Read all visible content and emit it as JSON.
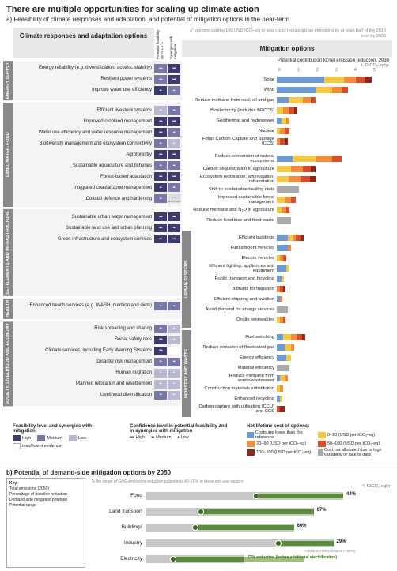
{
  "title": "There are multiple opportunities for scaling up climate action",
  "subtitle_a": "a) Feasibility of climate responses and adaptation, and potential of mitigation options in the near-term",
  "left_header": "Climate responses and adaptation options",
  "right_header": "Mitigation options",
  "right_note": "options costing 100 USD tCO₂-eq or less could reduce global emissions by at least half of the 2019 level by 2030",
  "right_axis_label": "Potential contribution to net emission reduction, 2030",
  "right_axis_unit": "GtCO₂-eq/yr",
  "axis_ticks": [
    "0",
    "1",
    "2",
    "3",
    "4",
    "5"
  ],
  "matrix_headers": [
    "Potential feasibility up to 1.5°C",
    "Synergies with mitigation"
  ],
  "colors": {
    "cost_neg": "#6b9bd1",
    "cost_0_20": "#f4c842",
    "cost_20_50": "#f08c3a",
    "cost_50_100": "#d94e2a",
    "cost_100_200": "#8b2a1a",
    "cost_na": "#aaaaaa",
    "high": "#3b3b6d",
    "med": "#7878a8",
    "low": "#b8b8d0",
    "demand_bg": "#c8c8c8",
    "demand_fg": "#5a8c3a",
    "demand_dot": "#3a6b1a"
  },
  "sectors_adapt": [
    {
      "name": "ENERGY SUPPLY",
      "rows": [
        {
          "label": "Energy reliability (e.g. diversification, access, stability)",
          "cells": [
            "med:3",
            "high:3"
          ]
        },
        {
          "label": "Resilient power systems",
          "cells": [
            "med:3",
            "high:3"
          ]
        },
        {
          "label": "Improve water use efficiency",
          "cells": [
            "high:2",
            "med:2"
          ]
        }
      ]
    },
    {
      "name": "LAND, WATER, FOOD",
      "rows": [
        {
          "label": "Efficient livestock systems",
          "cells": [
            "low:2",
            "med:2"
          ]
        },
        {
          "label": "Improved cropland management",
          "cells": [
            "high:3",
            "high:3"
          ]
        },
        {
          "label": "Water use efficiency and water resource management",
          "cells": [
            "high:3",
            "med:2"
          ]
        },
        {
          "label": "Biodiversity management and ecosystem connectivity",
          "cells": [
            "med:2",
            "low:2"
          ]
        },
        {
          "label": "Agroforestry",
          "cells": [
            "high:3",
            "high:3"
          ]
        },
        {
          "label": "Sustainable aquaculture and fisheries",
          "cells": [
            "med:2",
            "med:2"
          ]
        },
        {
          "label": "Forest-based adaptation",
          "cells": [
            "high:3",
            "high:3"
          ]
        },
        {
          "label": "Integrated coastal zone management",
          "cells": [
            "high:2",
            "med:2"
          ]
        },
        {
          "label": "Coastal defence and hardening",
          "cells": [
            "med:2",
            "na"
          ]
        }
      ]
    },
    {
      "name": "SETTLEMENTS AND INFRASTRUCTURE",
      "rows": [
        {
          "label": "Sustainable urban water management",
          "cells": [
            "high:3",
            "high:3"
          ]
        },
        {
          "label": "Sustainable land use and urban planning",
          "cells": [
            "high:3",
            "high:2"
          ]
        },
        {
          "label": "Green infrastructure and ecosystem services",
          "cells": [
            "high:3",
            "high:3"
          ]
        }
      ]
    },
    {
      "name": "HEALTH",
      "rows": [
        {
          "label": "Enhanced health services (e.g. WASH, nutrition and diets)",
          "cells": [
            "med:3",
            "med:2"
          ]
        }
      ]
    },
    {
      "name": "SOCIETY, LIVELIHOOD AND ECONOMY",
      "rows": [
        {
          "label": "Risk spreading and sharing",
          "cells": [
            "med:2",
            "low:1"
          ]
        },
        {
          "label": "Social safety nets",
          "cells": [
            "high:3",
            "low:2"
          ]
        },
        {
          "label": "Climate services, including Early Warning Systems",
          "cells": [
            "high:3",
            "empty"
          ]
        },
        {
          "label": "Disaster risk management",
          "cells": [
            "med:2",
            "med:2"
          ]
        },
        {
          "label": "Human migration",
          "cells": [
            "low:1",
            "low:1"
          ]
        },
        {
          "label": "Planned relocation and resettlement",
          "cells": [
            "low:2",
            "low:1"
          ]
        },
        {
          "label": "Livelihood diversification",
          "cells": [
            "med:2",
            "low:2"
          ]
        }
      ]
    }
  ],
  "sectors_mitig": [
    {
      "name": "",
      "rows": [
        {
          "label": "Solar",
          "segs": [
            [
              "cost_neg",
              60
            ],
            [
              "cost_0_20",
              25
            ],
            [
              "cost_20_50",
              15
            ],
            [
              "cost_50_100",
              12
            ],
            [
              "cost_100_200",
              8
            ]
          ]
        },
        {
          "label": "Wind",
          "segs": [
            [
              "cost_neg",
              50
            ],
            [
              "cost_0_20",
              20
            ],
            [
              "cost_20_50",
              12
            ],
            [
              "cost_50_100",
              8
            ]
          ]
        },
        {
          "label": "Reduce methane from coal, oil and gas",
          "segs": [
            [
              "cost_neg",
              15
            ],
            [
              "cost_0_20",
              18
            ],
            [
              "cost_20_50",
              10
            ],
            [
              "cost_50_100",
              6
            ]
          ]
        },
        {
          "label": "Bioelectricity (includes BECCS)",
          "segs": [
            [
              "cost_0_20",
              8
            ],
            [
              "cost_20_50",
              8
            ],
            [
              "cost_50_100",
              6
            ],
            [
              "cost_100_200",
              4
            ]
          ]
        },
        {
          "label": "Geothermal and hydropower",
          "segs": [
            [
              "cost_neg",
              6
            ],
            [
              "cost_0_20",
              6
            ],
            [
              "cost_20_50",
              4
            ]
          ]
        },
        {
          "label": "Nuclear",
          "segs": [
            [
              "cost_0_20",
              4
            ],
            [
              "cost_20_50",
              6
            ],
            [
              "cost_50_100",
              6
            ]
          ]
        },
        {
          "label": "Fossil Carbon Capture and Storage (CCS)",
          "segs": [
            [
              "cost_20_50",
              4
            ],
            [
              "cost_50_100",
              6
            ],
            [
              "cost_100_200",
              4
            ]
          ]
        }
      ]
    },
    {
      "name": "",
      "rows": [
        {
          "label": "Reduce conversion of natural ecosystems",
          "segs": [
            [
              "cost_neg",
              20
            ],
            [
              "cost_0_20",
              30
            ],
            [
              "cost_20_50",
              20
            ],
            [
              "cost_50_100",
              12
            ]
          ]
        },
        {
          "label": "Carbon sequestration in agriculture",
          "segs": [
            [
              "cost_0_20",
              18
            ],
            [
              "cost_20_50",
              15
            ],
            [
              "cost_50_100",
              10
            ],
            [
              "cost_100_200",
              6
            ]
          ]
        },
        {
          "label": "Ecosystem restoration, afforestation, reforestation",
          "segs": [
            [
              "cost_0_20",
              15
            ],
            [
              "cost_20_50",
              15
            ],
            [
              "cost_50_100",
              12
            ],
            [
              "cost_100_200",
              8
            ]
          ]
        },
        {
          "label": "Shift to sustainable healthy diets",
          "segs": [
            [
              "cost_na",
              28
            ]
          ]
        },
        {
          "label": "Improved sustainable forest management",
          "segs": [
            [
              "cost_0_20",
              10
            ],
            [
              "cost_20_50",
              8
            ],
            [
              "cost_50_100",
              6
            ]
          ]
        },
        {
          "label": "Reduce methane and N₂O in agriculture",
          "segs": [
            [
              "cost_0_20",
              6
            ],
            [
              "cost_20_50",
              6
            ],
            [
              "cost_50_100",
              4
            ]
          ]
        },
        {
          "label": "Reduce food loss and food waste",
          "segs": [
            [
              "cost_na",
              18
            ]
          ]
        }
      ]
    },
    {
      "name": "URBAN SYSTEMS",
      "rows": [
        {
          "label": "Efficient buildings",
          "segs": [
            [
              "cost_neg",
              14
            ],
            [
              "cost_0_20",
              6
            ],
            [
              "cost_20_50",
              4
            ],
            [
              "cost_50_100",
              6
            ],
            [
              "cost_100_200",
              4
            ]
          ]
        },
        {
          "label": "Fuel efficient vehicles",
          "segs": [
            [
              "cost_neg",
              14
            ],
            [
              "cost_20_50",
              4
            ]
          ]
        },
        {
          "label": "Electric vehicles",
          "segs": [
            [
              "cost_0_20",
              4
            ],
            [
              "cost_20_50",
              4
            ],
            [
              "cost_50_100",
              4
            ]
          ]
        },
        {
          "label": "Efficient lighting, appliances and equipment",
          "segs": [
            [
              "cost_neg",
              12
            ],
            [
              "cost_0_20",
              3
            ]
          ]
        },
        {
          "label": "Public transport and bicycling",
          "segs": [
            [
              "cost_neg",
              6
            ],
            [
              "cost_0_20",
              3
            ]
          ]
        },
        {
          "label": "Biofuels for transport",
          "segs": [
            [
              "cost_20_50",
              4
            ],
            [
              "cost_50_100",
              4
            ],
            [
              "cost_100_200",
              3
            ]
          ]
        },
        {
          "label": "Efficient shipping and aviation",
          "segs": [
            [
              "cost_neg",
              4
            ],
            [
              "cost_20_50",
              3
            ]
          ]
        },
        {
          "label": "Avoid demand for energy services",
          "segs": [
            [
              "cost_na",
              14
            ]
          ]
        },
        {
          "label": "Onsite renewables",
          "segs": [
            [
              "cost_0_20",
              4
            ],
            [
              "cost_20_50",
              4
            ],
            [
              "cost_50_100",
              3
            ]
          ]
        }
      ]
    },
    {
      "name": "INDUSTRY AND WASTE",
      "rows": [
        {
          "label": "Fuel switching",
          "segs": [
            [
              "cost_neg",
              8
            ],
            [
              "cost_0_20",
              10
            ],
            [
              "cost_20_50",
              8
            ],
            [
              "cost_50_100",
              6
            ],
            [
              "cost_100_200",
              4
            ]
          ]
        },
        {
          "label": "Reduce emission of fluorinated gas",
          "segs": [
            [
              "cost_neg",
              10
            ],
            [
              "cost_0_20",
              8
            ],
            [
              "cost_20_50",
              4
            ]
          ]
        },
        {
          "label": "Energy efficiency",
          "segs": [
            [
              "cost_neg",
              12
            ],
            [
              "cost_0_20",
              6
            ]
          ]
        },
        {
          "label": "Material efficiency",
          "segs": [
            [
              "cost_na",
              16
            ]
          ]
        },
        {
          "label": "Reduce methane from waste/wastewater",
          "segs": [
            [
              "cost_neg",
              4
            ],
            [
              "cost_0_20",
              6
            ],
            [
              "cost_20_50",
              4
            ]
          ]
        },
        {
          "label": "Construction materials substitution",
          "segs": [
            [
              "cost_0_20",
              4
            ],
            [
              "cost_20_50",
              4
            ]
          ]
        },
        {
          "label": "Enhanced recycling",
          "segs": [
            [
              "cost_neg",
              4
            ],
            [
              "cost_0_20",
              3
            ]
          ]
        },
        {
          "label": "Carbon capture with utilisation (CCU) and CCS",
          "segs": [
            [
              "cost_50_100",
              4
            ],
            [
              "cost_100_200",
              6
            ]
          ]
        }
      ]
    }
  ],
  "legend_adapt": {
    "title": "Feasibility level and synergies with mitigation",
    "items": [
      [
        "high",
        "High"
      ],
      [
        "med",
        "Medium"
      ],
      [
        "low",
        "Low"
      ]
    ],
    "insufficient": "Insufficient evidence",
    "conf_title": "Confidence level in potential feasibility and in synergies with mitigation",
    "conf_items": [
      [
        "•••",
        "High"
      ],
      [
        "••",
        "Medium"
      ],
      [
        "•",
        "Low"
      ]
    ]
  },
  "legend_mitig": {
    "title": "Net lifetime cost of options:",
    "items": [
      [
        "cost_neg",
        "Costs are lower than the reference"
      ],
      [
        "cost_0_20",
        "0–20 (USD per tCO₂-eq)"
      ],
      [
        "cost_20_50",
        "20–50 (USD per tCO₂-eq)"
      ],
      [
        "cost_50_100",
        "50–100 (USD per tCO₂-eq)"
      ],
      [
        "cost_100_200",
        "100–200 (USD per tCO₂-eq)"
      ],
      [
        "cost_na",
        "Cost not allocated due to high variability or lack of data"
      ]
    ]
  },
  "panel_b": {
    "title": "b) Potential of demand-side mitigation options by 2050",
    "note": "the range of GHG emissions reduction potential is 40–70% in these end-use sectors",
    "unit": "GtCO₂-eq/yr",
    "axis": [
      "0",
      "2",
      "4",
      "6",
      "8"
    ],
    "rows": [
      {
        "label": "Food",
        "bg": 100,
        "fg": 44,
        "pct": "44%",
        "dot": 56
      },
      {
        "label": "Land transport",
        "bg": 85,
        "fg": 57,
        "pct": "67%",
        "dot": 28
      },
      {
        "label": "Buildings",
        "bg": 75,
        "fg": 50,
        "pct": "66%",
        "dot": 25
      },
      {
        "label": "Industry",
        "bg": 95,
        "fg": 28,
        "pct": "29%",
        "dot": 67
      },
      {
        "label": "Electricity",
        "bg": 50,
        "fg": 36,
        "pct": "73% reduction (before additional electrification)",
        "dot": 14,
        "extra": 30,
        "extra_label": "Additional electrification (+60%)"
      }
    ],
    "key": {
      "title": "Key",
      "items": [
        "Total emissions (2050)",
        "Percentage of possible reduction",
        "Demand-side mitigation potential",
        "Potential range"
      ]
    }
  }
}
